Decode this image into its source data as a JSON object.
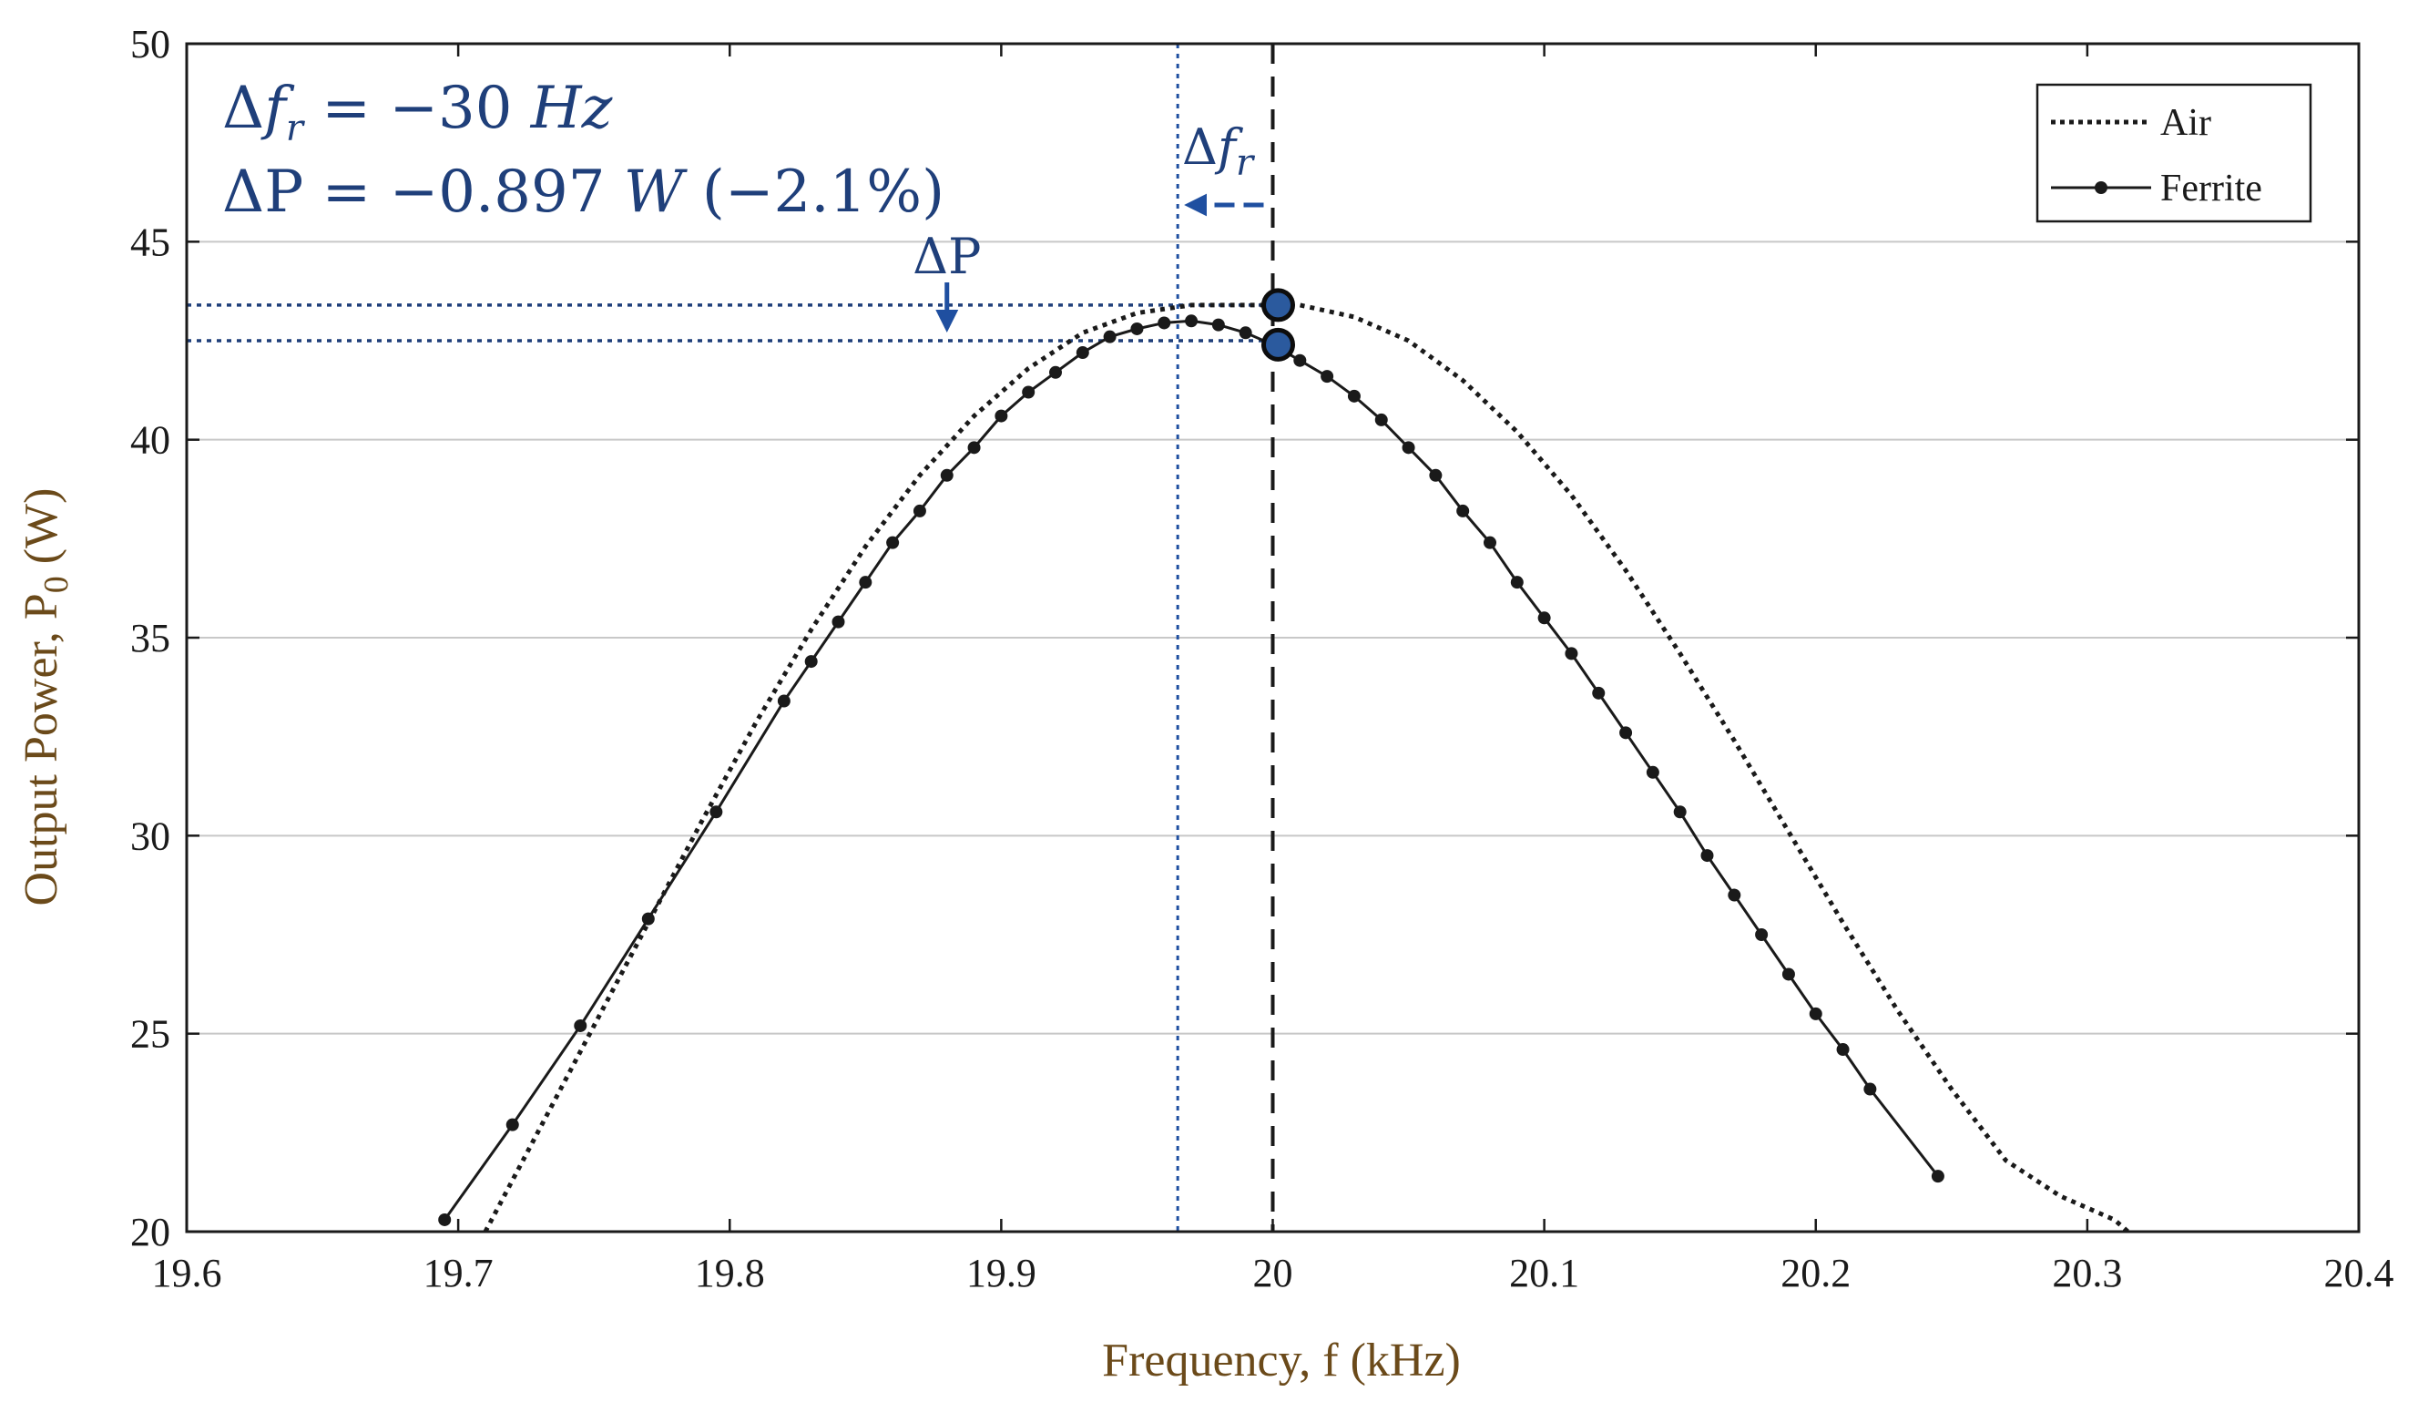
{
  "chart_data": {
    "type": "line",
    "title": "",
    "xlabel": "Frequency, f (kHz)",
    "ylabel_main": "Output Power, P",
    "ylabel_sub": "0",
    "ylabel_unit": " (W)",
    "xlim": [
      19.6,
      20.4
    ],
    "ylim": [
      20,
      50
    ],
    "grid": "horizontal",
    "legend_position": "top-right",
    "x_ticks": [
      19.6,
      19.7,
      19.8,
      19.9,
      20,
      20.1,
      20.2,
      20.3,
      20.4
    ],
    "x_tick_labels": [
      "19.6",
      "19.7",
      "19.8",
      "19.9",
      "20",
      "20.1",
      "20.2",
      "20.3",
      "20.4"
    ],
    "y_ticks": [
      20,
      25,
      30,
      35,
      40,
      45,
      50
    ],
    "y_tick_labels": [
      "20",
      "25",
      "30",
      "35",
      "40",
      "45",
      "50"
    ],
    "series": [
      {
        "name": "Air",
        "style": "dotted",
        "peak_frequency": 20.0,
        "peak_power": 43.4,
        "x": [
          19.71,
          19.73,
          19.75,
          19.77,
          19.79,
          19.81,
          19.83,
          19.85,
          19.87,
          19.89,
          19.91,
          19.93,
          19.95,
          19.97,
          19.99,
          20.0,
          20.01,
          20.03,
          20.05,
          20.07,
          20.09,
          20.11,
          20.13,
          20.15,
          20.17,
          20.19,
          20.21,
          20.23,
          20.25,
          20.27,
          20.29,
          20.31,
          20.315
        ],
        "y": [
          20.0,
          22.6,
          25.2,
          27.8,
          30.4,
          32.9,
          35.2,
          37.3,
          39.1,
          40.6,
          41.8,
          42.7,
          43.2,
          43.4,
          43.4,
          43.4,
          43.4,
          43.1,
          42.5,
          41.5,
          40.2,
          38.6,
          36.7,
          34.6,
          32.4,
          30.1,
          27.8,
          25.6,
          23.6,
          21.8,
          20.9,
          20.3,
          20.0
        ]
      },
      {
        "name": "Ferrite",
        "style": "solid-marker",
        "peak_frequency": 19.97,
        "peak_power": 43.0,
        "x": [
          19.695,
          19.72,
          19.745,
          19.77,
          19.795,
          19.82,
          19.83,
          19.84,
          19.85,
          19.86,
          19.87,
          19.88,
          19.89,
          19.9,
          19.91,
          19.92,
          19.93,
          19.94,
          19.95,
          19.96,
          19.97,
          19.98,
          19.99,
          20.0,
          20.01,
          20.02,
          20.03,
          20.04,
          20.05,
          20.06,
          20.07,
          20.08,
          20.09,
          20.1,
          20.11,
          20.12,
          20.13,
          20.14,
          20.15,
          20.16,
          20.17,
          20.18,
          20.19,
          20.2,
          20.21,
          20.22,
          20.245
        ],
        "y": [
          20.3,
          22.7,
          25.2,
          27.9,
          30.6,
          33.4,
          34.4,
          35.4,
          36.4,
          37.4,
          38.2,
          39.1,
          39.8,
          40.6,
          41.2,
          41.7,
          42.2,
          42.6,
          42.8,
          42.95,
          43.0,
          42.9,
          42.7,
          42.4,
          42.0,
          41.6,
          41.1,
          40.5,
          39.8,
          39.1,
          38.2,
          37.4,
          36.4,
          35.5,
          34.6,
          33.6,
          32.6,
          31.6,
          30.6,
          29.5,
          28.5,
          27.5,
          26.5,
          25.5,
          24.6,
          23.6,
          21.4
        ]
      }
    ],
    "markers": [
      {
        "name": "air-peak",
        "x": 20.0,
        "y": 43.4
      },
      {
        "name": "ferrite-at-20kHz",
        "x": 20.0,
        "y": 42.4
      }
    ],
    "reference_lines": {
      "air_resonance_x": 20.0,
      "ferrite_resonance_x": 19.965,
      "air_power_y": 43.4,
      "ferrite_power_y": 42.5
    },
    "annotations": {
      "delta_fr_line": "Δf_r = −30 Hz",
      "delta_p_line": "ΔP = −0.897 W (−2.1%)",
      "delta_p_label": "ΔP",
      "delta_fr_label": "Δf_r",
      "delta_fr_prefix": "Δ",
      "delta_fr_f": "f",
      "delta_fr_r": "r",
      "delta_fr_value": " = −30 ",
      "delta_fr_unit": "Hz",
      "delta_p_main": "ΔP = −0.897 ",
      "delta_p_unit": "W",
      "delta_p_pct": " (−2.1%)",
      "delta_p_arrow_x": 19.88
    },
    "colors": {
      "annotation": "#1f3f7a",
      "marker_fill": "#2b5a9e",
      "axis_title": "#6b4a1a",
      "grid": "#c8c8c8"
    }
  }
}
